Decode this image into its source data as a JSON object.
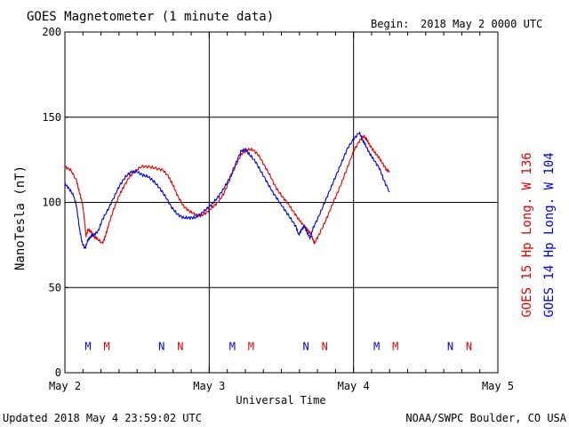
{
  "title": "GOES Magnetometer (1 minute data)",
  "begin_label": "Begin:",
  "begin_value": "2018 May 2 0000 UTC",
  "updated": "Updated 2018 May  4 23:59:02 UTC",
  "credit": "NOAA/SWPC Boulder, CO USA",
  "colors": {
    "goes15": "#e00000",
    "goes14": "#0000dd",
    "grid": "#000000"
  },
  "legend": {
    "goes15": "GOES 15 Hp  Long. W 136",
    "goes14": "GOES 14 Hp  Long. W 104"
  },
  "chart_data": {
    "type": "line",
    "title": "GOES Magnetometer (1 minute data)",
    "xlabel": "Universal Time",
    "ylabel": "NanoTesla (nT)",
    "xlim_days": [
      0,
      3
    ],
    "ylim": [
      0,
      200
    ],
    "yticks": [
      0,
      50,
      100,
      150,
      200
    ],
    "xticks": [
      {
        "day": 0,
        "label": "May 2"
      },
      {
        "day": 1,
        "label": "May 3"
      },
      {
        "day": 2,
        "label": "May 4"
      },
      {
        "day": 3,
        "label": "May 5"
      }
    ],
    "series": [
      {
        "name": "GOES 15 Hp  Long. W 136",
        "color": "#e00000",
        "points": [
          [
            0.0,
            121
          ],
          [
            0.04,
            119
          ],
          [
            0.08,
            113
          ],
          [
            0.1,
            106
          ],
          [
            0.12,
            100
          ],
          [
            0.13,
            94
          ],
          [
            0.14,
            86
          ],
          [
            0.145,
            80
          ],
          [
            0.16,
            84
          ],
          [
            0.18,
            83
          ],
          [
            0.2,
            80
          ],
          [
            0.22,
            79
          ],
          [
            0.26,
            76
          ],
          [
            0.28,
            80
          ],
          [
            0.3,
            86
          ],
          [
            0.33,
            94
          ],
          [
            0.37,
            103
          ],
          [
            0.4,
            108
          ],
          [
            0.44,
            114
          ],
          [
            0.48,
            118
          ],
          [
            0.53,
            121
          ],
          [
            0.58,
            121
          ],
          [
            0.63,
            120
          ],
          [
            0.68,
            119
          ],
          [
            0.72,
            115
          ],
          [
            0.75,
            110
          ],
          [
            0.78,
            104
          ],
          [
            0.82,
            98
          ],
          [
            0.86,
            95
          ],
          [
            0.9,
            93
          ],
          [
            0.94,
            92
          ],
          [
            0.98,
            94
          ],
          [
            1.02,
            97
          ],
          [
            1.06,
            100
          ],
          [
            1.1,
            105
          ],
          [
            1.14,
            113
          ],
          [
            1.18,
            121
          ],
          [
            1.22,
            128
          ],
          [
            1.26,
            131
          ],
          [
            1.3,
            131
          ],
          [
            1.34,
            128
          ],
          [
            1.38,
            122
          ],
          [
            1.42,
            116
          ],
          [
            1.46,
            109
          ],
          [
            1.5,
            104
          ],
          [
            1.54,
            100
          ],
          [
            1.58,
            95
          ],
          [
            1.62,
            90
          ],
          [
            1.65,
            87
          ],
          [
            1.68,
            84
          ],
          [
            1.7,
            82
          ],
          [
            1.72,
            78
          ],
          [
            1.73,
            76
          ],
          [
            1.76,
            81
          ],
          [
            1.8,
            88
          ],
          [
            1.84,
            96
          ],
          [
            1.88,
            104
          ],
          [
            1.92,
            112
          ],
          [
            1.96,
            121
          ],
          [
            2.0,
            130
          ],
          [
            2.04,
            136
          ],
          [
            2.07,
            139
          ],
          [
            2.09,
            137
          ],
          [
            2.11,
            134
          ],
          [
            2.14,
            130
          ],
          [
            2.17,
            127
          ],
          [
            2.2,
            123
          ],
          [
            2.23,
            119
          ],
          [
            2.25,
            118
          ]
        ]
      },
      {
        "name": "GOES 14 Hp  Long. W 104",
        "color": "#0000dd",
        "points": [
          [
            0.0,
            111
          ],
          [
            0.03,
            108
          ],
          [
            0.06,
            104
          ],
          [
            0.08,
            98
          ],
          [
            0.1,
            85
          ],
          [
            0.12,
            76
          ],
          [
            0.14,
            73
          ],
          [
            0.16,
            78
          ],
          [
            0.18,
            80
          ],
          [
            0.2,
            81
          ],
          [
            0.23,
            83
          ],
          [
            0.26,
            90
          ],
          [
            0.3,
            96
          ],
          [
            0.34,
            103
          ],
          [
            0.38,
            110
          ],
          [
            0.42,
            115
          ],
          [
            0.46,
            118
          ],
          [
            0.5,
            118
          ],
          [
            0.54,
            116
          ],
          [
            0.58,
            115
          ],
          [
            0.62,
            112
          ],
          [
            0.66,
            108
          ],
          [
            0.7,
            103
          ],
          [
            0.74,
            97
          ],
          [
            0.78,
            93
          ],
          [
            0.82,
            91
          ],
          [
            0.86,
            91
          ],
          [
            0.9,
            91
          ],
          [
            0.94,
            93
          ],
          [
            0.98,
            96
          ],
          [
            1.02,
            99
          ],
          [
            1.06,
            103
          ],
          [
            1.1,
            108
          ],
          [
            1.14,
            114
          ],
          [
            1.18,
            122
          ],
          [
            1.22,
            130
          ],
          [
            1.25,
            131
          ],
          [
            1.28,
            128
          ],
          [
            1.32,
            124
          ],
          [
            1.36,
            118
          ],
          [
            1.4,
            112
          ],
          [
            1.44,
            106
          ],
          [
            1.48,
            101
          ],
          [
            1.52,
            96
          ],
          [
            1.56,
            91
          ],
          [
            1.6,
            86
          ],
          [
            1.62,
            81
          ],
          [
            1.64,
            84
          ],
          [
            1.66,
            86
          ],
          [
            1.68,
            82
          ],
          [
            1.7,
            79
          ],
          [
            1.72,
            85
          ],
          [
            1.76,
            92
          ],
          [
            1.8,
            100
          ],
          [
            1.84,
            108
          ],
          [
            1.88,
            116
          ],
          [
            1.92,
            124
          ],
          [
            1.96,
            132
          ],
          [
            2.0,
            137
          ],
          [
            2.04,
            141
          ],
          [
            2.06,
            137
          ],
          [
            2.08,
            134
          ],
          [
            2.11,
            129
          ],
          [
            2.14,
            125
          ],
          [
            2.18,
            120
          ],
          [
            2.21,
            113
          ],
          [
            2.25,
            106
          ]
        ]
      }
    ],
    "annotations": [
      {
        "text": "M",
        "day": 0.16,
        "series": "GOES 14 Hp  Long. W 104"
      },
      {
        "text": "M",
        "day": 0.29,
        "series": "GOES 15 Hp  Long. W 136"
      },
      {
        "text": "N",
        "day": 0.67,
        "series": "GOES 14 Hp  Long. W 104"
      },
      {
        "text": "N",
        "day": 0.8,
        "series": "GOES 15 Hp  Long. W 136"
      },
      {
        "text": "M",
        "day": 1.16,
        "series": "GOES 14 Hp  Long. W 104"
      },
      {
        "text": "M",
        "day": 1.29,
        "series": "GOES 15 Hp  Long. W 136"
      },
      {
        "text": "N",
        "day": 1.67,
        "series": "GOES 14 Hp  Long. W 104"
      },
      {
        "text": "N",
        "day": 1.8,
        "series": "GOES 15 Hp  Long. W 136"
      },
      {
        "text": "M",
        "day": 2.16,
        "series": "GOES 14 Hp  Long. W 104"
      },
      {
        "text": "M",
        "day": 2.29,
        "series": "GOES 15 Hp  Long. W 136"
      },
      {
        "text": "N",
        "day": 2.67,
        "series": "GOES 14 Hp  Long. W 104"
      },
      {
        "text": "N",
        "day": 2.8,
        "series": "GOES 15 Hp  Long. W 136"
      }
    ],
    "annotation_level": 16,
    "grid": true,
    "legend_placement": "right-vertical"
  }
}
